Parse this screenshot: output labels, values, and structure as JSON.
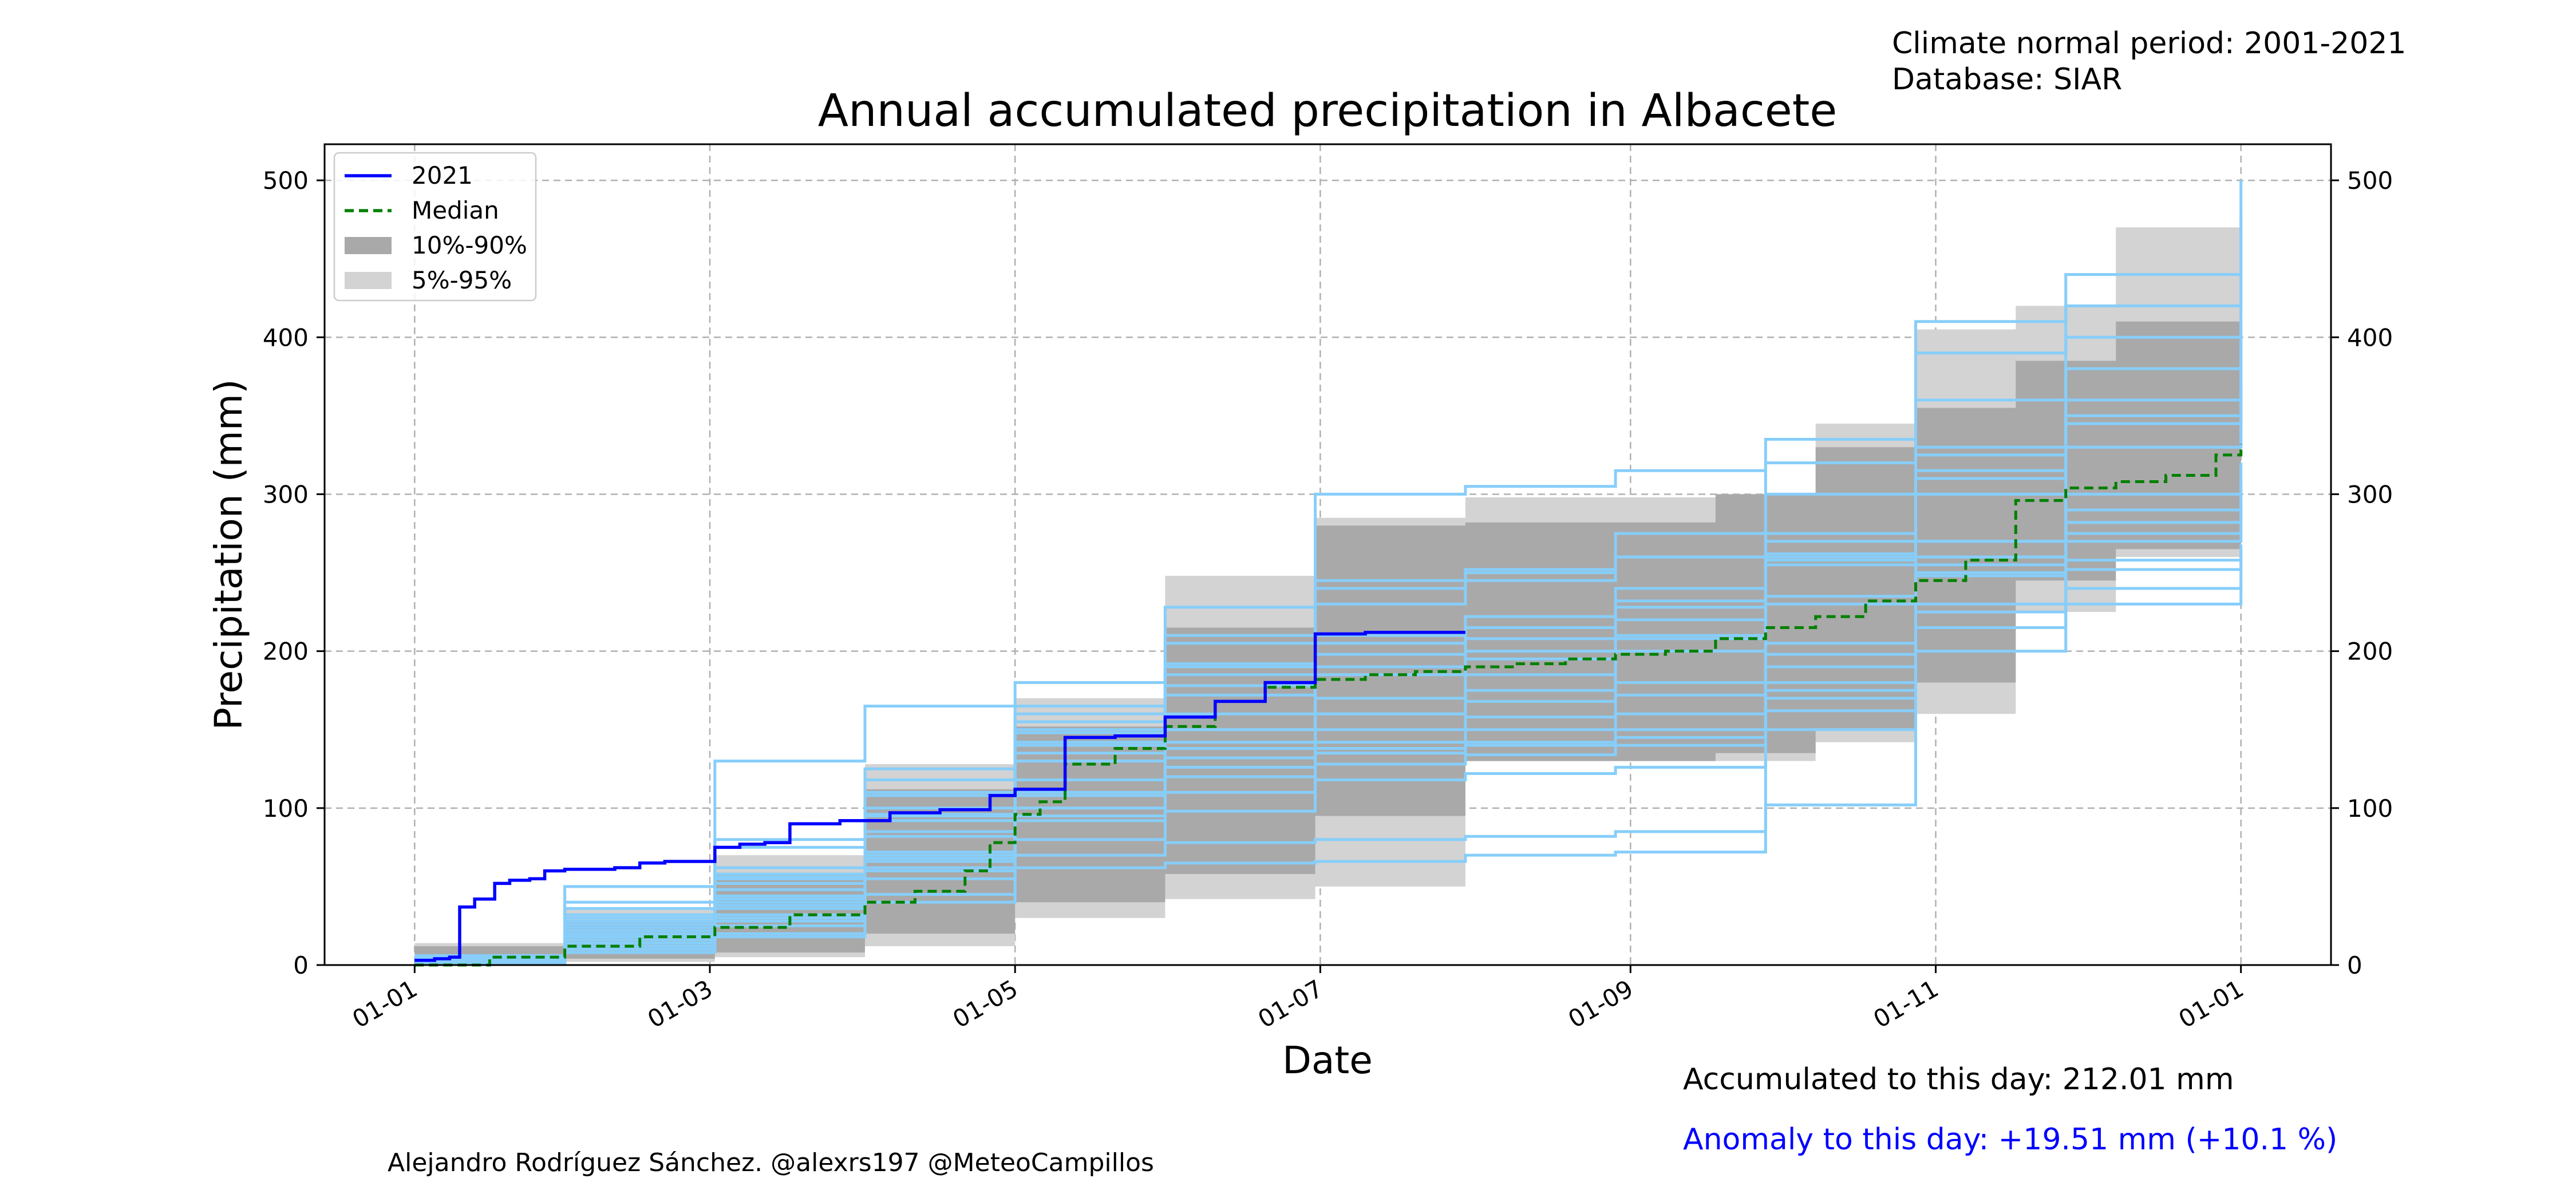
{
  "header": {
    "period_label": "Climate normal period: 2001-2021",
    "database_label": "Database: SIAR"
  },
  "footer": {
    "accumulated_label": "Accumulated to this day: 212.01 mm",
    "anomaly_label": "Anomaly to this day: +19.51 mm (+10.1 %)",
    "credit": "Alejandro Rodríguez Sánchez. @alexrs197 @MeteoCampillos"
  },
  "colors": {
    "current": "#0000ff",
    "median": "#008000",
    "band_inner": "#a9a9a9",
    "band_outer": "#d3d3d3",
    "years": "#87cefa",
    "anomaly_text": "#0000ff"
  },
  "chart_data": {
    "type": "line",
    "title": "Annual accumulated precipitation in Albacete",
    "xlabel": "Date",
    "ylabel": "Precipitation (mm)",
    "x_ticks": [
      "01-01",
      "01-03",
      "01-05",
      "01-07",
      "01-09",
      "01-11",
      "01-01"
    ],
    "x_tick_days": [
      0,
      59,
      120,
      181,
      243,
      304,
      365
    ],
    "y_ticks": [
      0,
      100,
      200,
      300,
      400,
      500
    ],
    "xlim": [
      -18,
      383
    ],
    "ylim": [
      0,
      523
    ],
    "grid": true,
    "legend_position": "top-left",
    "legend": [
      "2021",
      "Median",
      "10%-90%",
      "5%-95%"
    ],
    "current_year": {
      "name": "2021",
      "x": [
        0,
        4,
        7,
        9,
        12,
        16,
        19,
        23,
        26,
        30,
        35,
        40,
        45,
        50,
        55,
        60,
        65,
        70,
        75,
        85,
        95,
        105,
        115,
        120,
        130,
        140,
        150,
        160,
        170,
        180,
        190,
        200,
        210
      ],
      "y": [
        3,
        4,
        5,
        37,
        42,
        52,
        54,
        55,
        60,
        61,
        61,
        62,
        65,
        66,
        66,
        75,
        77,
        78,
        90,
        92,
        97,
        99,
        108,
        112,
        145,
        146,
        158,
        168,
        180,
        211,
        212,
        212,
        212
      ]
    },
    "median": {
      "name": "Median",
      "x": [
        0,
        15,
        30,
        45,
        60,
        75,
        90,
        100,
        110,
        115,
        120,
        125,
        130,
        140,
        150,
        160,
        170,
        180,
        190,
        200,
        210,
        220,
        230,
        240,
        250,
        260,
        270,
        280,
        290,
        300,
        310,
        320,
        330,
        340,
        350,
        360,
        365
      ],
      "y": [
        0,
        5,
        12,
        18,
        24,
        32,
        40,
        47,
        60,
        78,
        96,
        104,
        128,
        138,
        152,
        168,
        177,
        182,
        185,
        187,
        190,
        192,
        195,
        198,
        200,
        208,
        215,
        222,
        232,
        245,
        258,
        296,
        304,
        308,
        312,
        325,
        332
      ]
    },
    "band_10_90": {
      "x": [
        0,
        30,
        60,
        90,
        120,
        150,
        180,
        210,
        240,
        260,
        280,
        300,
        320,
        340,
        365
      ],
      "low": [
        2,
        4,
        8,
        20,
        40,
        58,
        95,
        130,
        130,
        135,
        150,
        180,
        245,
        265,
        270
      ],
      "high": [
        12,
        28,
        58,
        112,
        152,
        215,
        280,
        282,
        282,
        300,
        330,
        355,
        385,
        410,
        440
      ]
    },
    "band_5_95": {
      "x": [
        0,
        30,
        60,
        90,
        120,
        150,
        180,
        210,
        240,
        260,
        280,
        300,
        320,
        340,
        365
      ],
      "low": [
        0,
        2,
        5,
        12,
        30,
        42,
        50,
        130,
        130,
        130,
        142,
        160,
        225,
        260,
        262
      ],
      "high": [
        14,
        36,
        70,
        128,
        170,
        248,
        285,
        298,
        298,
        300,
        345,
        405,
        420,
        470,
        478
      ]
    },
    "other_years": [
      {
        "x": [
          0,
          30,
          60,
          90,
          120,
          150,
          180,
          210,
          240,
          270,
          300,
          330,
          365
        ],
        "y": [
          2,
          20,
          42,
          85,
          135,
          150,
          160,
          175,
          200,
          235,
          270,
          330,
          400
        ]
      },
      {
        "x": [
          0,
          30,
          60,
          90,
          120,
          150,
          180,
          210,
          240,
          270,
          300,
          330,
          365
        ],
        "y": [
          5,
          50,
          130,
          165,
          180,
          228,
          300,
          305,
          315,
          335,
          410,
          440,
          500
        ]
      },
      {
        "x": [
          0,
          30,
          60,
          90,
          120,
          150,
          180,
          210,
          240,
          270,
          300,
          330,
          365
        ],
        "y": [
          3,
          10,
          25,
          55,
          70,
          78,
          80,
          82,
          85,
          180,
          255,
          270,
          280
        ]
      },
      {
        "x": [
          0,
          30,
          60,
          90,
          120,
          150,
          180,
          210,
          240,
          270,
          300,
          330,
          365
        ],
        "y": [
          1,
          18,
          55,
          95,
          140,
          178,
          190,
          200,
          208,
          230,
          260,
          282,
          293
        ]
      },
      {
        "x": [
          0,
          30,
          60,
          90,
          120,
          150,
          180,
          210,
          240,
          270,
          300,
          330,
          365
        ],
        "y": [
          4,
          12,
          20,
          40,
          62,
          65,
          66,
          70,
          72,
          102,
          215,
          240,
          262
        ]
      },
      {
        "x": [
          0,
          30,
          60,
          90,
          120,
          150,
          180,
          210,
          240,
          270,
          300,
          330,
          365
        ],
        "y": [
          2,
          30,
          58,
          110,
          160,
          210,
          245,
          252,
          260,
          275,
          330,
          380,
          410
        ]
      },
      {
        "x": [
          0,
          30,
          60,
          90,
          120,
          150,
          180,
          210,
          240,
          270,
          300,
          330,
          365
        ],
        "y": [
          6,
          22,
          38,
          68,
          100,
          132,
          138,
          142,
          150,
          175,
          200,
          230,
          245
        ]
      },
      {
        "x": [
          0,
          30,
          60,
          90,
          120,
          150,
          180,
          210,
          240,
          270,
          300,
          330,
          365
        ],
        "y": [
          3,
          26,
          48,
          82,
          118,
          150,
          170,
          185,
          210,
          260,
          300,
          345,
          380
        ]
      },
      {
        "x": [
          0,
          30,
          60,
          90,
          120,
          150,
          180,
          210,
          240,
          270,
          300,
          330,
          365
        ],
        "y": [
          2,
          14,
          30,
          60,
          95,
          120,
          135,
          140,
          145,
          170,
          248,
          258,
          268
        ]
      },
      {
        "x": [
          0,
          30,
          60,
          90,
          120,
          150,
          180,
          210,
          240,
          270,
          300,
          330,
          365
        ],
        "y": [
          5,
          36,
          75,
          118,
          155,
          190,
          230,
          245,
          260,
          300,
          360,
          400,
          438
        ]
      },
      {
        "x": [
          0,
          30,
          60,
          90,
          120,
          150,
          180,
          210,
          240,
          270,
          300,
          330,
          365
        ],
        "y": [
          1,
          8,
          18,
          45,
          80,
          98,
          118,
          122,
          126,
          150,
          225,
          282,
          298
        ]
      },
      {
        "x": [
          0,
          30,
          60,
          90,
          120,
          150,
          180,
          210,
          240,
          270,
          300,
          330,
          365
        ],
        "y": [
          4,
          20,
          44,
          92,
          130,
          160,
          185,
          195,
          220,
          255,
          300,
          330,
          350
        ]
      },
      {
        "x": [
          0,
          30,
          60,
          90,
          120,
          150,
          180,
          210,
          240,
          270,
          300,
          330,
          365
        ],
        "y": [
          2,
          16,
          40,
          72,
          110,
          142,
          160,
          168,
          180,
          205,
          270,
          300,
          320
        ]
      },
      {
        "x": [
          0,
          30,
          60,
          90,
          120,
          150,
          180,
          210,
          240,
          270,
          300,
          330,
          365
        ],
        "y": [
          3,
          24,
          52,
          100,
          148,
          192,
          210,
          222,
          240,
          270,
          325,
          360,
          392
        ]
      },
      {
        "x": [
          0,
          30,
          60,
          90,
          120,
          150,
          180,
          210,
          240,
          270,
          300,
          330,
          365
        ],
        "y": [
          1,
          10,
          28,
          62,
          92,
          110,
          128,
          134,
          140,
          162,
          230,
          252,
          262
        ]
      },
      {
        "x": [
          0,
          30,
          60,
          90,
          120,
          150,
          180,
          210,
          240,
          270,
          300,
          330,
          365
        ],
        "y": [
          4,
          32,
          62,
          108,
          150,
          185,
          205,
          215,
          232,
          262,
          315,
          350,
          372
        ]
      },
      {
        "x": [
          0,
          30,
          60,
          90,
          120,
          150,
          180,
          210,
          240,
          270,
          300,
          330,
          365
        ],
        "y": [
          2,
          18,
          36,
          70,
          108,
          138,
          150,
          158,
          172,
          198,
          260,
          290,
          308
        ]
      },
      {
        "x": [
          0,
          30,
          60,
          90,
          120,
          150,
          180,
          210,
          240,
          270,
          300,
          330,
          365
        ],
        "y": [
          3,
          28,
          56,
          96,
          142,
          172,
          198,
          208,
          228,
          258,
          310,
          345,
          362
        ]
      },
      {
        "x": [
          0,
          30,
          60,
          90,
          120,
          150,
          180,
          210,
          240,
          270,
          300,
          330,
          365
        ],
        "y": [
          2,
          12,
          32,
          66,
          100,
          126,
          142,
          150,
          160,
          190,
          250,
          275,
          285
        ]
      },
      {
        "x": [
          0,
          30,
          60,
          90,
          120,
          150,
          180,
          210,
          240,
          270,
          300,
          330,
          365
        ],
        "y": [
          5,
          40,
          80,
          125,
          165,
          205,
          240,
          250,
          275,
          320,
          390,
          420,
          478
        ]
      }
    ]
  }
}
